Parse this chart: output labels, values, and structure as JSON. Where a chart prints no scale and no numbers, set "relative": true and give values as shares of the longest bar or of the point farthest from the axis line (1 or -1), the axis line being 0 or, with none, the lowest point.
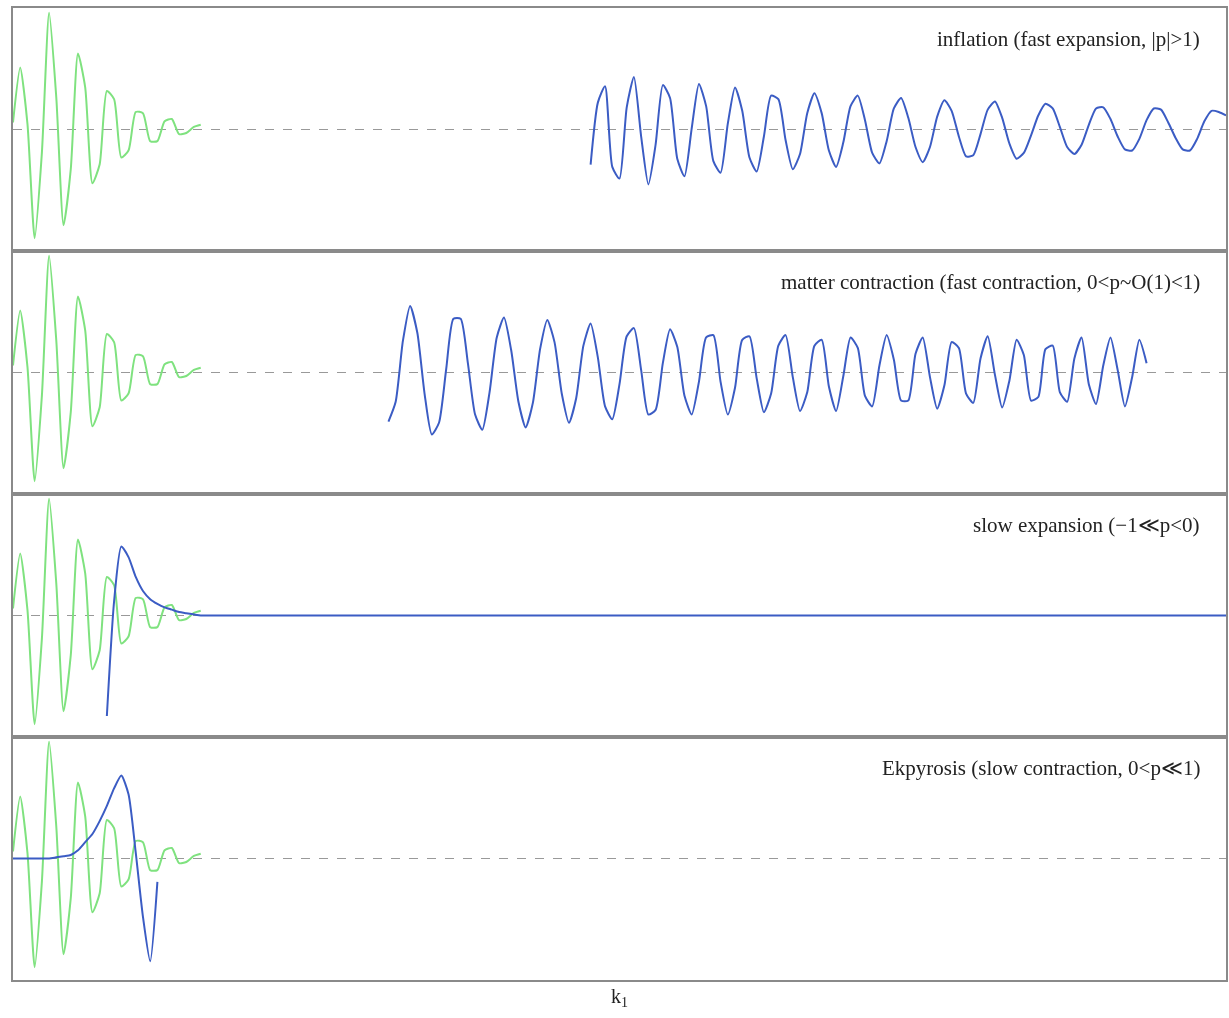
{
  "chart_data": [
    {
      "type": "line",
      "relative": true,
      "annotations": [
        "inflation (fast expansion, |p|>1)"
      ],
      "ref_lines": [
        {
          "axis": "y",
          "value": 0,
          "color": "#999999",
          "line_style": "dashed"
        }
      ],
      "categories": [
        null,
        null,
        null,
        null,
        null,
        null,
        null,
        null,
        null,
        null,
        null,
        null,
        null,
        null,
        null,
        null,
        null,
        null,
        null,
        null,
        null,
        null,
        null,
        null,
        null,
        null,
        null,
        null,
        null,
        null,
        null,
        null,
        null,
        null,
        null,
        null,
        null,
        null,
        null,
        null,
        null,
        null,
        null,
        null,
        null,
        null,
        null,
        null,
        null,
        null,
        null,
        null,
        null,
        null,
        null,
        null,
        null,
        null,
        null,
        null,
        null,
        null,
        null,
        null,
        null,
        null,
        null,
        null,
        null,
        null,
        null,
        null,
        null,
        null,
        null,
        null,
        null,
        null,
        null,
        null,
        null,
        null,
        null,
        null,
        null,
        null,
        null,
        null,
        null,
        null,
        null,
        null,
        null,
        null,
        null,
        null,
        null,
        null,
        null,
        null,
        null,
        null,
        null,
        null,
        null,
        null,
        null,
        null,
        null,
        null,
        null,
        null,
        null,
        null,
        null,
        null,
        null,
        null,
        null,
        null,
        null,
        null,
        null,
        null,
        null,
        null,
        null,
        null,
        null,
        null,
        null,
        null,
        null,
        null,
        null,
        null,
        null,
        null,
        null,
        null,
        null,
        null,
        null,
        null,
        null,
        null,
        null,
        null,
        null,
        null,
        null,
        null,
        null,
        null,
        null,
        null,
        null,
        null,
        null,
        null,
        null,
        null,
        null,
        null,
        null,
        null,
        null,
        null,
        null
      ],
      "series": [
        {
          "color": "#7fe27f",
          "values": [
            0.06,
            0.53,
            0.05,
            -0.93,
            -0.2,
            1,
            0.27,
            -0.82,
            -0.34,
            0.65,
            0.36,
            -0.46,
            -0.3,
            0.33,
            0.26,
            -0.24,
            -0.18,
            0.15,
            0.14,
            -0.1,
            -0.1,
            0.07,
            0.09,
            -0.04,
            -0.03,
            0.02,
            0.04,
            null,
            null,
            null,
            null,
            null,
            null,
            null,
            null,
            null,
            null,
            null,
            null,
            null,
            null,
            null,
            null,
            null,
            null,
            null,
            null,
            null,
            null,
            null,
            null,
            null,
            null,
            null,
            null,
            null,
            null,
            null,
            null,
            null,
            null,
            null,
            null,
            null,
            null,
            null,
            null,
            null,
            null,
            null,
            null,
            null,
            null,
            null,
            null,
            null,
            null,
            null,
            null,
            null,
            null,
            null,
            null,
            null,
            null,
            null,
            null,
            null,
            null,
            null,
            null,
            null,
            null,
            null,
            null,
            null,
            null,
            null,
            null,
            null,
            null,
            null,
            null,
            null,
            null,
            null,
            null,
            null,
            null,
            null,
            null,
            null,
            null,
            null,
            null,
            null,
            null,
            null,
            null,
            null,
            null,
            null,
            null,
            null,
            null,
            null,
            null,
            null,
            null,
            null,
            null,
            null,
            null,
            null,
            null,
            null,
            null,
            null,
            null,
            null,
            null,
            null,
            null,
            null,
            null,
            null,
            null,
            null,
            null,
            null,
            null,
            null,
            null,
            null,
            null,
            null,
            null,
            null,
            null,
            null,
            null,
            null,
            null,
            null,
            null,
            null,
            null,
            null,
            null
          ]
        },
        {
          "color": "#3b5cc4",
          "values": [
            null,
            null,
            null,
            null,
            null,
            null,
            null,
            null,
            null,
            null,
            null,
            null,
            null,
            null,
            null,
            null,
            null,
            null,
            null,
            null,
            null,
            null,
            null,
            null,
            null,
            null,
            null,
            null,
            null,
            null,
            null,
            null,
            null,
            null,
            null,
            null,
            null,
            null,
            null,
            null,
            null,
            null,
            null,
            null,
            null,
            null,
            null,
            null,
            null,
            null,
            null,
            null,
            null,
            null,
            null,
            null,
            null,
            null,
            null,
            null,
            null,
            null,
            null,
            null,
            null,
            null,
            null,
            null,
            null,
            null,
            null,
            null,
            null,
            null,
            null,
            null,
            null,
            null,
            null,
            null,
            -0.3,
            0.23,
            0.37,
            -0.32,
            -0.42,
            0.19,
            0.45,
            -0.06,
            -0.47,
            -0.13,
            0.38,
            0.27,
            -0.25,
            -0.4,
            0.01,
            0.39,
            0.2,
            -0.27,
            -0.37,
            0.05,
            0.36,
            0.16,
            -0.24,
            -0.36,
            -0.06,
            0.29,
            0.26,
            -0.09,
            -0.34,
            -0.21,
            0.14,
            0.31,
            0.14,
            -0.18,
            -0.32,
            -0.11,
            0.2,
            0.29,
            0.08,
            -0.2,
            -0.29,
            -0.1,
            0.18,
            0.27,
            0.1,
            -0.15,
            -0.28,
            -0.15,
            0.11,
            0.25,
            0.16,
            -0.06,
            -0.23,
            -0.22,
            -0.04,
            0.17,
            0.24,
            0.1,
            -0.12,
            -0.25,
            -0.2,
            -0.05,
            0.12,
            0.22,
            0.18,
            0.02,
            -0.15,
            -0.21,
            -0.13,
            0.04,
            0.18,
            0.19,
            0.09,
            -0.06,
            -0.17,
            -0.18,
            -0.08,
            0.08,
            0.18,
            0.17,
            0.06,
            -0.07,
            -0.17,
            -0.18,
            -0.08,
            0.07,
            0.16,
            0.15,
            0.12
          ]
        }
      ]
    },
    {
      "type": "line",
      "relative": true,
      "annotations": [
        "matter contraction (fast contraction, 0<p~O(1)<1)"
      ],
      "ref_lines": [
        {
          "axis": "y",
          "value": 0,
          "color": "#999999",
          "line_style": "dashed"
        }
      ],
      "categories": [
        null,
        null,
        null,
        null,
        null,
        null,
        null,
        null,
        null,
        null,
        null,
        null,
        null,
        null,
        null,
        null,
        null,
        null,
        null,
        null,
        null,
        null,
        null,
        null,
        null,
        null,
        null,
        null,
        null,
        null,
        null,
        null,
        null,
        null,
        null,
        null,
        null,
        null,
        null,
        null,
        null,
        null,
        null,
        null,
        null,
        null,
        null,
        null,
        null,
        null,
        null,
        null,
        null,
        null,
        null,
        null,
        null,
        null,
        null,
        null,
        null,
        null,
        null,
        null,
        null,
        null,
        null,
        null,
        null,
        null,
        null,
        null,
        null,
        null,
        null,
        null,
        null,
        null,
        null,
        null,
        null,
        null,
        null,
        null,
        null,
        null,
        null,
        null,
        null,
        null,
        null,
        null,
        null,
        null,
        null,
        null,
        null,
        null,
        null,
        null,
        null,
        null,
        null,
        null,
        null,
        null,
        null,
        null,
        null,
        null,
        null,
        null,
        null,
        null,
        null,
        null,
        null,
        null,
        null,
        null,
        null,
        null,
        null,
        null,
        null,
        null,
        null,
        null,
        null,
        null,
        null,
        null,
        null,
        null,
        null,
        null,
        null,
        null,
        null,
        null,
        null,
        null,
        null,
        null,
        null,
        null,
        null,
        null,
        null,
        null,
        null,
        null,
        null,
        null,
        null,
        null,
        null,
        null,
        null,
        null,
        null,
        null,
        null,
        null,
        null,
        null,
        null,
        null,
        null
      ],
      "series": [
        {
          "color": "#7fe27f",
          "values": [
            0.06,
            0.53,
            0.05,
            -0.93,
            -0.2,
            1,
            0.27,
            -0.82,
            -0.34,
            0.65,
            0.36,
            -0.46,
            -0.3,
            0.33,
            0.26,
            -0.24,
            -0.18,
            0.15,
            0.14,
            -0.1,
            -0.1,
            0.07,
            0.09,
            -0.04,
            -0.03,
            0.02,
            0.04,
            null,
            null,
            null,
            null,
            null,
            null,
            null,
            null,
            null,
            null,
            null,
            null,
            null,
            null,
            null,
            null,
            null,
            null,
            null,
            null,
            null,
            null,
            null,
            null,
            null,
            null,
            null,
            null,
            null,
            null,
            null,
            null,
            null,
            null,
            null,
            null,
            null,
            null,
            null,
            null,
            null,
            null,
            null,
            null,
            null,
            null,
            null,
            null,
            null,
            null,
            null,
            null,
            null,
            null,
            null,
            null,
            null,
            null,
            null,
            null,
            null,
            null,
            null,
            null,
            null,
            null,
            null,
            null,
            null,
            null,
            null,
            null,
            null,
            null,
            null,
            null,
            null,
            null,
            null,
            null,
            null,
            null,
            null,
            null,
            null,
            null,
            null,
            null,
            null,
            null,
            null,
            null,
            null,
            null,
            null,
            null,
            null,
            null,
            null,
            null,
            null,
            null,
            null,
            null,
            null,
            null,
            null,
            null,
            null,
            null,
            null,
            null,
            null,
            null,
            null,
            null,
            null,
            null,
            null,
            null,
            null,
            null,
            null,
            null,
            null,
            null,
            null,
            null,
            null,
            null,
            null,
            null,
            null,
            null,
            null,
            null,
            null,
            null,
            null,
            null,
            null,
            null
          ]
        },
        {
          "color": "#3b5cc4",
          "values": [
            null,
            null,
            null,
            null,
            null,
            null,
            null,
            null,
            null,
            null,
            null,
            null,
            null,
            null,
            null,
            null,
            null,
            null,
            null,
            null,
            null,
            null,
            null,
            null,
            null,
            null,
            null,
            null,
            null,
            null,
            null,
            null,
            null,
            null,
            null,
            null,
            null,
            null,
            null,
            null,
            null,
            null,
            null,
            null,
            null,
            null,
            null,
            null,
            null,
            null,
            null,
            null,
            -0.42,
            -0.25,
            0.27,
            0.57,
            0.34,
            -0.18,
            -0.53,
            -0.43,
            0.03,
            0.46,
            0.46,
            0.08,
            -0.36,
            -0.49,
            -0.17,
            0.3,
            0.47,
            0.19,
            -0.25,
            -0.47,
            -0.26,
            0.2,
            0.45,
            0.26,
            -0.18,
            -0.43,
            -0.22,
            0.23,
            0.42,
            0.13,
            -0.29,
            -0.4,
            -0.1,
            0.31,
            0.38,
            0.02,
            -0.36,
            -0.32,
            0.08,
            0.37,
            0.22,
            -0.2,
            -0.36,
            -0.08,
            0.3,
            0.32,
            -0.08,
            -0.36,
            -0.13,
            0.28,
            0.31,
            -0.05,
            -0.34,
            -0.18,
            0.23,
            0.32,
            -0.04,
            -0.33,
            -0.17,
            0.23,
            0.28,
            -0.12,
            -0.33,
            -0.03,
            0.3,
            0.21,
            -0.2,
            -0.29,
            0.06,
            0.32,
            0.11,
            -0.24,
            -0.24,
            0.16,
            0.3,
            -0.04,
            -0.31,
            -0.11,
            0.26,
            0.21,
            -0.18,
            -0.26,
            0.12,
            0.31,
            -0.02,
            -0.3,
            -0.07,
            0.28,
            0.15,
            -0.24,
            -0.21,
            0.2,
            0.23,
            -0.17,
            -0.25,
            0.12,
            0.3,
            -0.1,
            -0.27,
            0.06,
            0.3,
            0.02,
            -0.29,
            -0.04,
            0.28,
            0.08,
            null,
            null,
            null,
            null,
            null,
            null,
            null,
            null,
            null,
            null,
            null
          ]
        }
      ]
    },
    {
      "type": "line",
      "relative": true,
      "annotations": [
        "slow expansion (−1≪p<0)"
      ],
      "ref_lines": [
        {
          "axis": "y",
          "value": 0,
          "color": "#999999",
          "line_style": "dashed"
        }
      ],
      "categories": [
        null,
        null,
        null,
        null,
        null,
        null,
        null,
        null,
        null,
        null,
        null,
        null,
        null,
        null,
        null,
        null,
        null,
        null,
        null,
        null,
        null,
        null,
        null,
        null,
        null,
        null,
        null,
        null,
        null,
        null,
        null,
        null,
        null,
        null,
        null,
        null,
        null,
        null,
        null,
        null,
        null,
        null,
        null,
        null,
        null,
        null,
        null,
        null,
        null,
        null,
        null,
        null,
        null,
        null,
        null,
        null,
        null,
        null,
        null,
        null,
        null,
        null,
        null,
        null,
        null,
        null,
        null,
        null,
        null,
        null,
        null,
        null,
        null,
        null,
        null,
        null,
        null,
        null,
        null,
        null,
        null,
        null,
        null,
        null,
        null,
        null,
        null,
        null,
        null,
        null,
        null,
        null,
        null,
        null,
        null,
        null,
        null,
        null,
        null,
        null,
        null,
        null,
        null,
        null,
        null,
        null,
        null,
        null,
        null,
        null,
        null,
        null,
        null,
        null,
        null,
        null,
        null,
        null,
        null,
        null,
        null,
        null,
        null,
        null,
        null,
        null,
        null,
        null,
        null,
        null,
        null,
        null,
        null,
        null,
        null,
        null,
        null,
        null,
        null,
        null,
        null,
        null,
        null,
        null,
        null,
        null,
        null,
        null,
        null,
        null,
        null,
        null,
        null,
        null,
        null,
        null,
        null,
        null,
        null,
        null,
        null,
        null,
        null,
        null,
        null,
        null,
        null,
        null,
        null
      ],
      "series": [
        {
          "color": "#7fe27f",
          "values": [
            0.06,
            0.53,
            0.05,
            -0.93,
            -0.2,
            1,
            0.27,
            -0.82,
            -0.34,
            0.65,
            0.36,
            -0.46,
            -0.3,
            0.33,
            0.26,
            -0.24,
            -0.18,
            0.15,
            0.14,
            -0.1,
            -0.1,
            0.07,
            0.09,
            -0.04,
            -0.03,
            0.02,
            0.04,
            null,
            null,
            null,
            null,
            null,
            null,
            null,
            null,
            null,
            null,
            null,
            null,
            null,
            null,
            null,
            null,
            null,
            null,
            null,
            null,
            null,
            null,
            null,
            null,
            null,
            null,
            null,
            null,
            null,
            null,
            null,
            null,
            null,
            null,
            null,
            null,
            null,
            null,
            null,
            null,
            null,
            null,
            null,
            null,
            null,
            null,
            null,
            null,
            null,
            null,
            null,
            null,
            null,
            null,
            null,
            null,
            null,
            null,
            null,
            null,
            null,
            null,
            null,
            null,
            null,
            null,
            null,
            null,
            null,
            null,
            null,
            null,
            null,
            null,
            null,
            null,
            null,
            null,
            null,
            null,
            null,
            null,
            null,
            null,
            null,
            null,
            null,
            null,
            null,
            null,
            null,
            null,
            null,
            null,
            null,
            null,
            null,
            null,
            null,
            null,
            null,
            null,
            null,
            null,
            null,
            null,
            null,
            null,
            null,
            null,
            null,
            null,
            null,
            null,
            null,
            null,
            null,
            null,
            null,
            null,
            null,
            null,
            null,
            null,
            null,
            null,
            null,
            null,
            null,
            null,
            null,
            null,
            null,
            null,
            null,
            null,
            null,
            null,
            null,
            null,
            null,
            null
          ]
        },
        {
          "color": "#3b5cc4",
          "values": [
            null,
            null,
            null,
            null,
            null,
            null,
            null,
            null,
            null,
            null,
            null,
            null,
            null,
            -0.86,
            0.12,
            0.59,
            0.5,
            0.33,
            0.21,
            0.14,
            0.1,
            0.07,
            0.05,
            0.03,
            0.02,
            0.01,
            0,
            0,
            0,
            0,
            0,
            0,
            0,
            0,
            0,
            0,
            0,
            0,
            0,
            0,
            0,
            0,
            0,
            0,
            0,
            0,
            0,
            0,
            0,
            0,
            0,
            0,
            0,
            0,
            0,
            0,
            0,
            0,
            0,
            0,
            0,
            0,
            0,
            0,
            0,
            0,
            0,
            0,
            0,
            0,
            0,
            0,
            0,
            0,
            0,
            0,
            0,
            0,
            0,
            0,
            0,
            0,
            0,
            0,
            0,
            0,
            0,
            0,
            0,
            0,
            0,
            0,
            0,
            0,
            0,
            0,
            0,
            0,
            0,
            0,
            0,
            0,
            0,
            0,
            0,
            0,
            0,
            0,
            0,
            0,
            0,
            0,
            0,
            0,
            0,
            0,
            0,
            0,
            0,
            0,
            0,
            0,
            0,
            0,
            0,
            0,
            0,
            0,
            0,
            0,
            0,
            0,
            0,
            0,
            0,
            0,
            0,
            0,
            0,
            0,
            0,
            0,
            0,
            0,
            0,
            0,
            0,
            0,
            0,
            0,
            0,
            0,
            0,
            0,
            0,
            0,
            0,
            0,
            0,
            0,
            0,
            0,
            0,
            0,
            0,
            0,
            0,
            0,
            0
          ]
        }
      ]
    },
    {
      "type": "line",
      "relative": true,
      "annotations": [
        "Ekpyrosis (slow contraction, 0<p≪1)"
      ],
      "xlabel": "k$_{1}$",
      "ref_lines": [
        {
          "axis": "y",
          "value": 0,
          "color": "#999999",
          "line_style": "dashed"
        }
      ],
      "categories": [
        null,
        null,
        null,
        null,
        null,
        null,
        null,
        null,
        null,
        null,
        null,
        null,
        null,
        null,
        null,
        null,
        null,
        null,
        null,
        null,
        null,
        null,
        null,
        null,
        null,
        null,
        null,
        null,
        null,
        null,
        null,
        null,
        null,
        null,
        null,
        null,
        null,
        null,
        null,
        null,
        null,
        null,
        null,
        null,
        null,
        null,
        null,
        null,
        null,
        null,
        null,
        null,
        null,
        null,
        null,
        null,
        null,
        null,
        null,
        null,
        null,
        null,
        null,
        null,
        null,
        null,
        null,
        null,
        null,
        null,
        null,
        null,
        null,
        null,
        null,
        null,
        null,
        null,
        null,
        null,
        null,
        null,
        null,
        null,
        null,
        null,
        null,
        null,
        null,
        null,
        null,
        null,
        null,
        null,
        null,
        null,
        null,
        null,
        null,
        null,
        null,
        null,
        null,
        null,
        null,
        null,
        null,
        null,
        null,
        null,
        null,
        null,
        null,
        null,
        null,
        null,
        null,
        null,
        null,
        null,
        null,
        null,
        null,
        null,
        null,
        null,
        null,
        null,
        null,
        null,
        null,
        null,
        null,
        null,
        null,
        null,
        null,
        null,
        null,
        null,
        null,
        null,
        null,
        null,
        null,
        null,
        null,
        null,
        null,
        null,
        null,
        null,
        null,
        null,
        null,
        null,
        null,
        null,
        null,
        null,
        null,
        null,
        null,
        null,
        null,
        null,
        null,
        null,
        null
      ],
      "series": [
        {
          "color": "#7fe27f",
          "values": [
            0.06,
            0.53,
            0.05,
            -0.93,
            -0.2,
            1,
            0.27,
            -0.82,
            -0.34,
            0.65,
            0.36,
            -0.46,
            -0.3,
            0.33,
            0.26,
            -0.24,
            -0.18,
            0.15,
            0.14,
            -0.1,
            -0.1,
            0.07,
            0.09,
            -0.04,
            -0.03,
            0.02,
            0.04,
            null,
            null,
            null,
            null,
            null,
            null,
            null,
            null,
            null,
            null,
            null,
            null,
            null,
            null,
            null,
            null,
            null,
            null,
            null,
            null,
            null,
            null,
            null,
            null,
            null,
            null,
            null,
            null,
            null,
            null,
            null,
            null,
            null,
            null,
            null,
            null,
            null,
            null,
            null,
            null,
            null,
            null,
            null,
            null,
            null,
            null,
            null,
            null,
            null,
            null,
            null,
            null,
            null,
            null,
            null,
            null,
            null,
            null,
            null,
            null,
            null,
            null,
            null,
            null,
            null,
            null,
            null,
            null,
            null,
            null,
            null,
            null,
            null,
            null,
            null,
            null,
            null,
            null,
            null,
            null,
            null,
            null,
            null,
            null,
            null,
            null,
            null,
            null,
            null,
            null,
            null,
            null,
            null,
            null,
            null,
            null,
            null,
            null,
            null,
            null,
            null,
            null,
            null,
            null,
            null,
            null,
            null,
            null,
            null,
            null,
            null,
            null,
            null,
            null,
            null,
            null,
            null,
            null,
            null,
            null,
            null,
            null,
            null,
            null,
            null,
            null,
            null,
            null,
            null,
            null,
            null,
            null,
            null,
            null,
            null,
            null,
            null,
            null,
            null,
            null,
            null,
            null
          ]
        },
        {
          "color": "#3b5cc4",
          "values": [
            0,
            0,
            0,
            0,
            0,
            0,
            0.01,
            0.02,
            0.03,
            0.07,
            0.14,
            0.21,
            0.32,
            0.45,
            0.6,
            0.71,
            0.55,
            0.05,
            -0.5,
            -0.88,
            -0.2,
            null,
            null,
            null,
            null,
            null,
            null,
            null,
            null,
            null,
            null,
            null,
            null,
            null,
            null,
            null,
            null,
            null,
            null,
            null,
            null,
            null,
            null,
            null,
            null,
            null,
            null,
            null,
            null,
            null,
            null,
            null,
            null,
            null,
            null,
            null,
            null,
            null,
            null,
            null,
            null,
            null,
            null,
            null,
            null,
            null,
            null,
            null,
            null,
            null,
            null,
            null,
            null,
            null,
            null,
            null,
            null,
            null,
            null,
            null,
            null,
            null,
            null,
            null,
            null,
            null,
            null,
            null,
            null,
            null,
            null,
            null,
            null,
            null,
            null,
            null,
            null,
            null,
            null,
            null,
            null,
            null,
            null,
            null,
            null,
            null,
            null,
            null,
            null,
            null,
            null,
            null,
            null,
            null,
            null,
            null,
            null,
            null,
            null,
            null,
            null,
            null,
            null,
            null,
            null,
            null,
            null,
            null,
            null,
            null,
            null,
            null,
            null,
            null,
            null,
            null,
            null,
            null,
            null,
            null,
            null,
            null,
            null,
            null,
            null,
            null,
            null,
            null,
            null,
            null,
            null,
            null,
            null,
            null,
            null,
            null,
            null,
            null,
            null,
            null,
            null,
            null,
            null,
            null,
            null,
            null,
            null,
            null,
            null
          ]
        }
      ]
    }
  ]
}
